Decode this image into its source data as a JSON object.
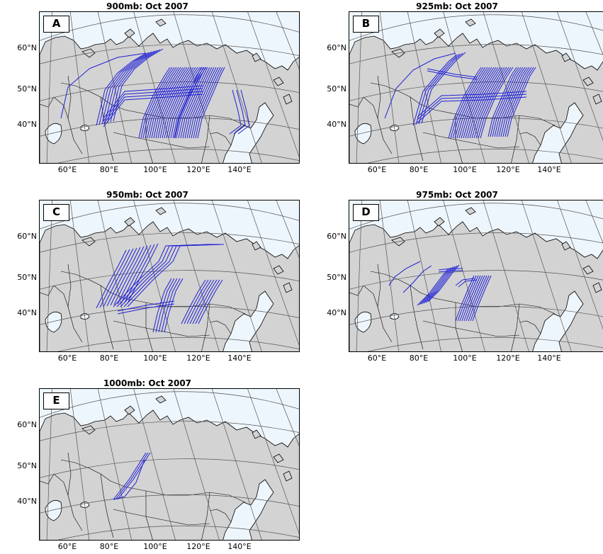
{
  "panels": [
    {
      "letter": "A",
      "title": "900mb: Oct 2007",
      "tracks": "A"
    },
    {
      "letter": "B",
      "title": "925mb: Oct 2007",
      "tracks": "B"
    },
    {
      "letter": "C",
      "title": "950mb: Oct 2007",
      "tracks": "C"
    },
    {
      "letter": "D",
      "title": "975mb: Oct 2007",
      "tracks": "D"
    },
    {
      "letter": "E",
      "title": "1000mb: Oct 2007",
      "tracks": "E"
    }
  ],
  "lat_labels": [
    "60°N",
    "50°N",
    "40°N"
  ],
  "lon_labels": [
    "60°E",
    "80°E",
    "100°E",
    "120°E",
    "140°E"
  ],
  "colors": {
    "land": "#d3d3d3",
    "ocean": "#eef6fd",
    "coast": "#000000",
    "graticule": "#555555",
    "trajectory": "#1f1fd6"
  }
}
